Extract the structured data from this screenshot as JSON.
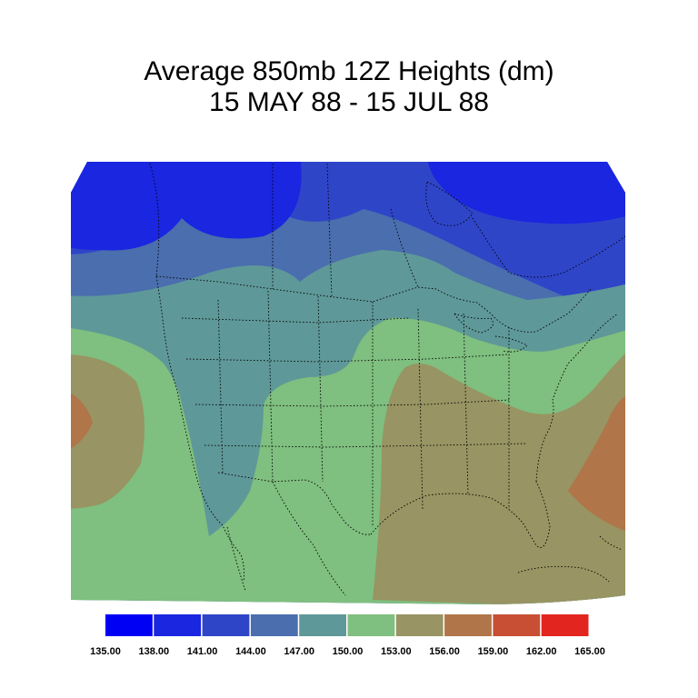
{
  "title": {
    "line1": "Average 850mb 12Z Heights (dm)",
    "line2": "15 MAY 88 - 15 JUL 88"
  },
  "colorbar": {
    "colors": [
      "#0000f5",
      "#1a26e0",
      "#2f45c8",
      "#4a6eae",
      "#5f9898",
      "#7fbf7f",
      "#989463",
      "#b07548",
      "#c84f33",
      "#e2261f"
    ],
    "labels": [
      "135.00",
      "138.00",
      "141.00",
      "144.00",
      "147.00",
      "150.00",
      "153.00",
      "156.00",
      "159.00",
      "162.00",
      "165.00"
    ]
  },
  "map": {
    "projection": "Lambert conformal",
    "region": "North America (CONUS)",
    "layers": [
      "filled height contours",
      "state and national boundaries (dotted)"
    ],
    "features": [
      {
        "label": "low-center-northwest",
        "band": "138.00-141.00"
      },
      {
        "label": "low-center-northeast-canada",
        "band": "138.00-141.00"
      },
      {
        "label": "ridge-southeast-us",
        "band": "153.00-156.00"
      },
      {
        "label": "high-atlantic",
        "band": "156.00-159.00"
      },
      {
        "label": "high-pacific",
        "band": "156.00-159.00"
      }
    ]
  }
}
